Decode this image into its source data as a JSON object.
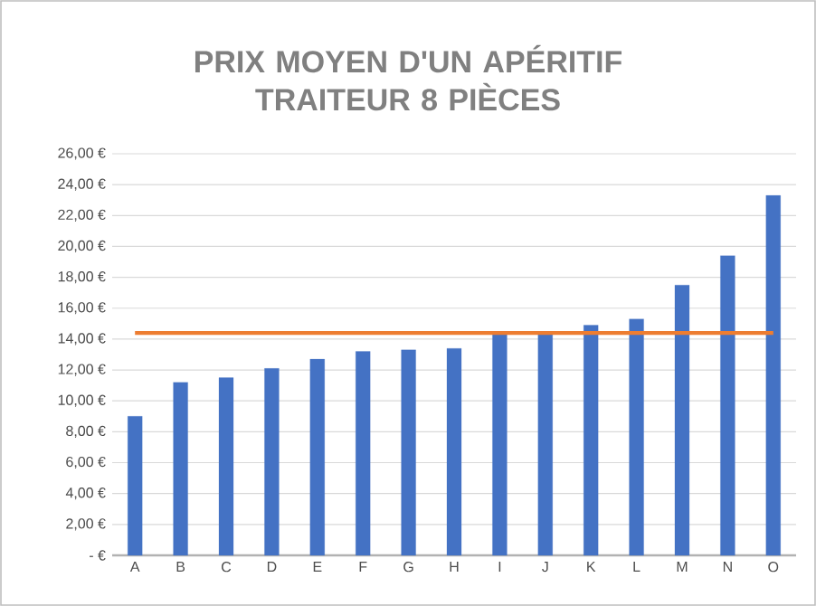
{
  "chart_data": {
    "type": "bar",
    "title": "PRIX MOYEN D'UN APÉRITIF TRAITEUR 8 PIÈCES",
    "categories": [
      "A",
      "B",
      "C",
      "D",
      "E",
      "F",
      "G",
      "H",
      "I",
      "J",
      "K",
      "L",
      "M",
      "N",
      "O"
    ],
    "series": [
      {
        "color": "#4472c4",
        "values": [
          9.0,
          11.2,
          11.5,
          12.1,
          12.7,
          13.2,
          13.3,
          13.4,
          14.3,
          14.3,
          14.9,
          15.3,
          17.5,
          19.4,
          23.3
        ]
      },
      {
        "type": "line",
        "color": "#ed7d31",
        "values": [
          14.4,
          14.4,
          14.4,
          14.4,
          14.4,
          14.4,
          14.4,
          14.4,
          14.4,
          14.4,
          14.4,
          14.4,
          14.4,
          14.4,
          14.4
        ]
      }
    ],
    "ylim": [
      0,
      26
    ],
    "yticks": [
      {
        "value": 0,
        "label": "-  €"
      },
      {
        "value": 2,
        "label": "2,00 €"
      },
      {
        "value": 4,
        "label": "4,00 €"
      },
      {
        "value": 6,
        "label": "6,00 €"
      },
      {
        "value": 8,
        "label": "8,00 €"
      },
      {
        "value": 10,
        "label": "10,00 €"
      },
      {
        "value": 12,
        "label": "12,00 €"
      },
      {
        "value": 14,
        "label": "14,00 €"
      },
      {
        "value": 16,
        "label": "16,00 €"
      },
      {
        "value": 18,
        "label": "18,00 €"
      },
      {
        "value": 20,
        "label": "20,00 €"
      },
      {
        "value": 22,
        "label": "22,00 €"
      },
      {
        "value": 24,
        "label": "24,00 €"
      },
      {
        "value": 26,
        "label": "26,00 €"
      }
    ],
    "grid": "y"
  }
}
